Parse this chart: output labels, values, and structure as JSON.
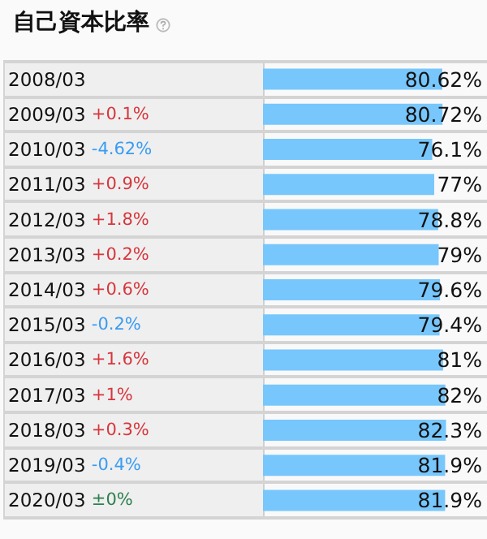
{
  "chart_data": {
    "type": "bar",
    "orientation": "horizontal",
    "title": "自己資本比率",
    "categories": [
      "2008/03",
      "2009/03 +0.1%",
      "2010/03 -4.62%",
      "2011/03 +0.9%",
      "2012/03 +1.8%",
      "2013/03 +0.2%",
      "2014/03 +0.6%",
      "2015/03 -0.2%",
      "2016/03 +1.6%",
      "2017/03 +1%",
      "2018/03 +0.3%",
      "2019/03 -0.4%",
      "2020/03 ±0%"
    ],
    "values": [
      80.62,
      80.72,
      76.1,
      77,
      78.8,
      79,
      79.6,
      79.4,
      81,
      82,
      82.3,
      81.9,
      81.9
    ],
    "value_labels": [
      "80.62%",
      "80.72%",
      "76.1%",
      "77%",
      "78.8%",
      "79%",
      "79.6%",
      "79.4%",
      "81%",
      "82%",
      "82.3%",
      "81.9%",
      "81.9%"
    ],
    "color": "#77c7fc",
    "xlim": [
      0,
      100
    ]
  }
}
